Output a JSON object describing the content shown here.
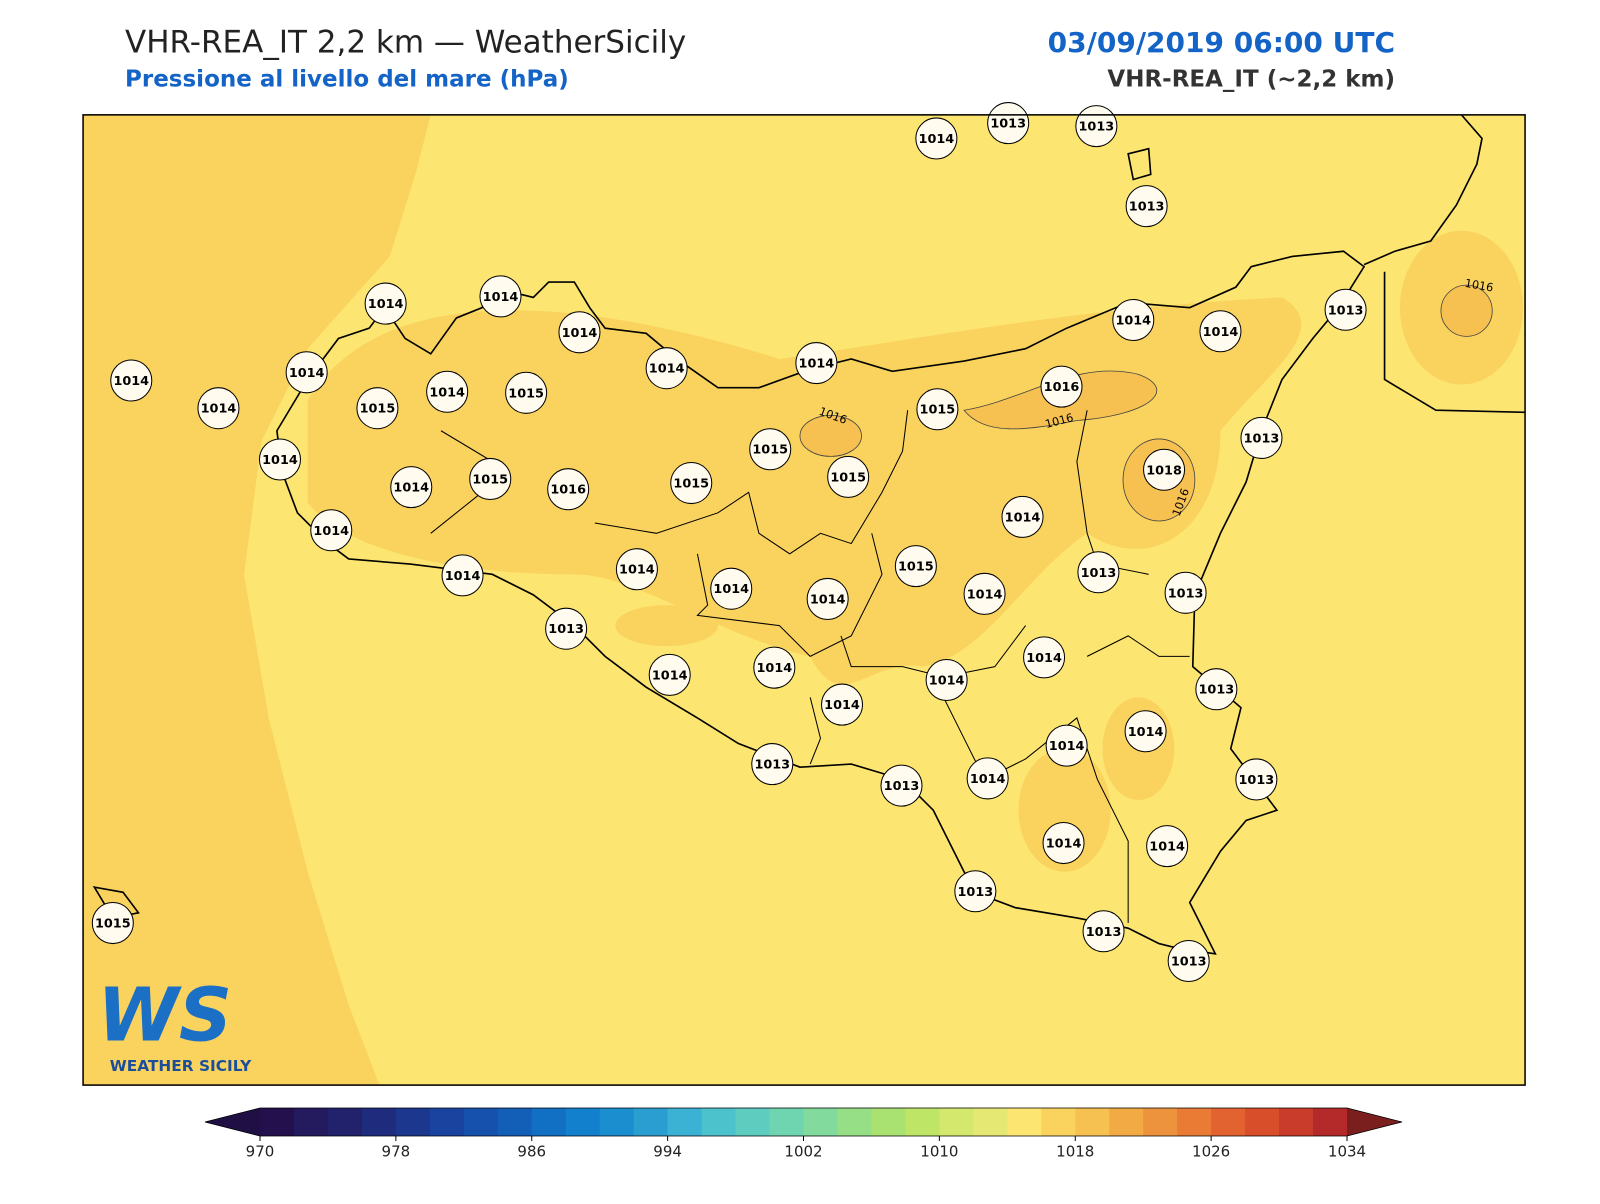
{
  "header": {
    "title": "VHR-REA_IT 2,2 km — WeatherSicily",
    "subtitle": "Pressione al livello del mare (hPa)",
    "date": "03/09/2019 06:00 UTC",
    "model": "VHR-REA_IT (~2,2 km)"
  },
  "map": {
    "station_values": [
      1014,
      1013,
      1013,
      1013,
      1014,
      1014,
      1014,
      1014,
      1014,
      1014,
      1014,
      1013,
      1014,
      1014,
      1014,
      1015,
      1014,
      1015,
      1015,
      1016,
      1013,
      1014,
      1015,
      1018,
      1014,
      1015,
      1016,
      1015,
      1015,
      1014,
      1014,
      1015,
      1013,
      1013,
      1014,
      1014,
      1014,
      1014,
      1014,
      1013,
      1014,
      1014,
      1014,
      1014,
      1013,
      1014,
      1014,
      1014,
      1013,
      1013,
      1014,
      1013,
      1014,
      1014,
      1013,
      1015,
      1013,
      1013
    ],
    "contour_labels": [
      1016,
      1016,
      1016,
      1016
    ]
  },
  "logo": {
    "letters": "WS",
    "text": "WEATHER SICILY"
  },
  "colorbar": {
    "range": [
      970,
      1034
    ],
    "under": "#1f0f45",
    "over": "#7a1e1e",
    "colors": [
      "#23104d",
      "#241a5e",
      "#22226c",
      "#1f2c7d",
      "#1c378e",
      "#19439f",
      "#1651ad",
      "#135fb8",
      "#1170c4",
      "#1280cc",
      "#1a8ecf",
      "#2a9ed1",
      "#3bb2d3",
      "#4cc2cc",
      "#5ecdc0",
      "#6fd5b0",
      "#82db9c",
      "#96df86",
      "#aae272",
      "#bee566",
      "#d3e86c",
      "#e6e874",
      "#fce570",
      "#fad35f",
      "#f6c150",
      "#f2aa45",
      "#ee933d",
      "#ea7b35",
      "#e2632f",
      "#d84e2b",
      "#c93c2b",
      "#b42a2a"
    ],
    "ticks": [
      970,
      978,
      986,
      994,
      1002,
      1010,
      1018,
      1026,
      1034
    ]
  }
}
